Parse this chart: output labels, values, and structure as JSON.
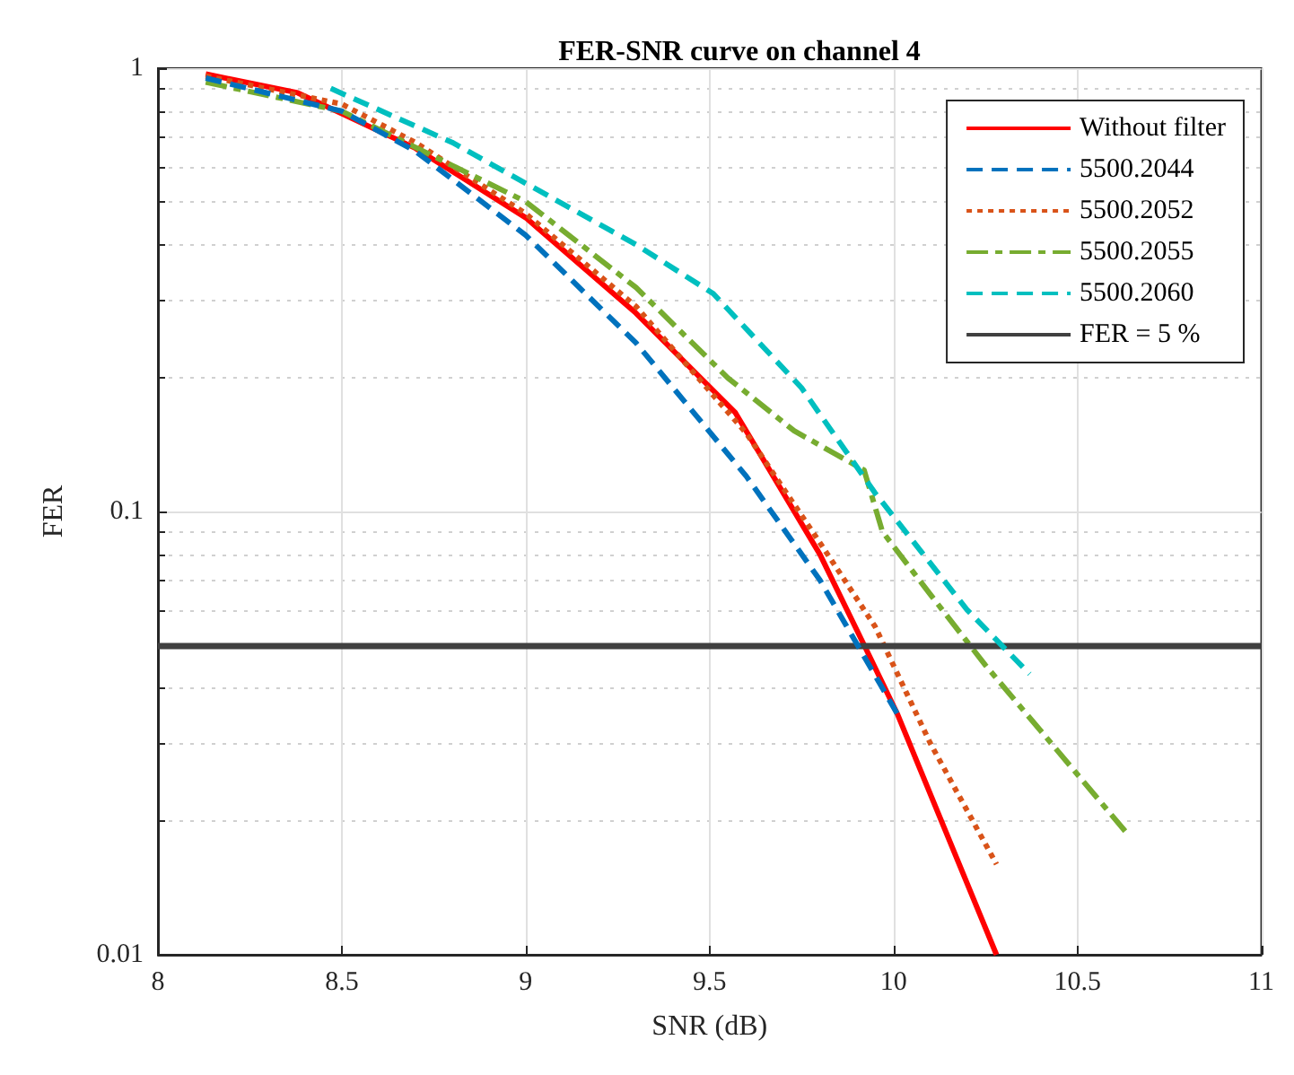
{
  "chart_data": {
    "type": "line",
    "title": "FER-SNR curve on channel 4",
    "xlabel": "SNR (dB)",
    "ylabel": "FER",
    "log": "y",
    "xlim": [
      8,
      11
    ],
    "xticks": [
      8,
      8.5,
      9,
      9.5,
      10,
      10.5,
      11
    ],
    "ylim": [
      0.01,
      1
    ],
    "yticks": [
      0.01,
      0.1,
      1
    ],
    "grid": true,
    "legend": "top right",
    "marker": "none",
    "series": [
      {
        "name": "Without filter",
        "color": "#ff0000",
        "line_style": "solid",
        "x": [
          8.13,
          8.38,
          8.7,
          9.0,
          9.3,
          9.57,
          9.8,
          9.92,
          10.01,
          10.28
        ],
        "values": [
          0.97,
          0.88,
          0.66,
          0.46,
          0.28,
          0.167,
          0.08,
          0.05,
          0.035,
          0.01
        ]
      },
      {
        "name": "5500.2044",
        "color": "#0072bd",
        "line_style": "dashed",
        "x": [
          8.13,
          8.5,
          8.7,
          9.0,
          9.3,
          9.6,
          9.8,
          10.01
        ],
        "values": [
          0.95,
          0.8,
          0.65,
          0.42,
          0.24,
          0.12,
          0.07,
          0.035
        ]
      },
      {
        "name": "5500.2052",
        "color": "#d95319",
        "line_style": "dotted",
        "x": [
          8.13,
          8.5,
          8.7,
          9.0,
          9.3,
          9.6,
          9.8,
          9.95,
          10.1,
          10.28
        ],
        "values": [
          0.96,
          0.83,
          0.68,
          0.47,
          0.29,
          0.15,
          0.085,
          0.055,
          0.03,
          0.016
        ]
      },
      {
        "name": "5500.2055",
        "color": "#77ac30",
        "line_style": "dashdot",
        "x": [
          8.13,
          8.5,
          9.0,
          9.3,
          9.55,
          9.73,
          9.92,
          9.97,
          10.1,
          10.25,
          10.63
        ],
        "values": [
          0.93,
          0.8,
          0.5,
          0.32,
          0.2,
          0.152,
          0.124,
          0.09,
          0.065,
          0.045,
          0.019
        ]
      },
      {
        "name": "5500.2060",
        "color": "#00bfbf",
        "line_style": "dashed",
        "x": [
          8.47,
          8.8,
          9.0,
          9.3,
          9.51,
          9.75,
          9.95,
          10.2,
          10.37
        ],
        "values": [
          0.9,
          0.68,
          0.55,
          0.4,
          0.31,
          0.19,
          0.11,
          0.06,
          0.043
        ]
      }
    ],
    "ref_lines": [
      {
        "axis": "y",
        "value": 0.05,
        "label": "FER = 5 %",
        "color": "#404040",
        "line_style": "solid"
      }
    ]
  }
}
